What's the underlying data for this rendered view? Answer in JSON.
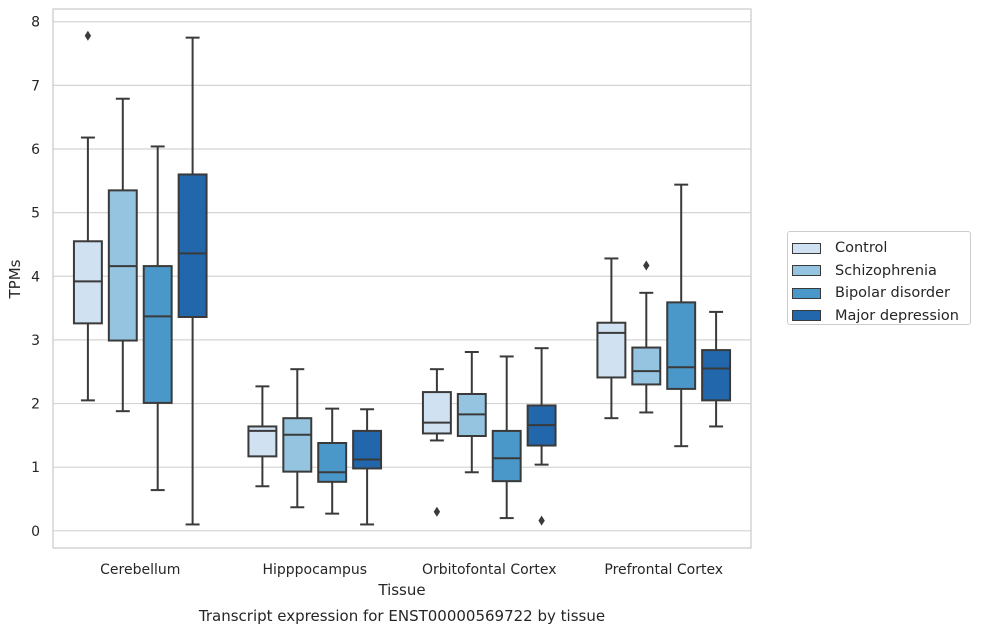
{
  "chart_data": {
    "type": "box",
    "title": "",
    "caption": "Transcript expression for ENST00000569722 by tissue",
    "xlabel": "Tissue",
    "ylabel": "TPMs",
    "ylim": [
      -0.27,
      8.2
    ],
    "yticks": [
      0,
      1,
      2,
      3,
      4,
      5,
      6,
      7,
      8
    ],
    "grid": true,
    "legend_position": "right",
    "categories": [
      "Cerebellum",
      "Hipppocampus",
      "Orbitofontal Cortex",
      "Prefrontal Cortex"
    ],
    "series": [
      {
        "name": "Control",
        "color": "#d0e1f2",
        "boxes": [
          {
            "whislo": 2.05,
            "q1": 3.26,
            "med": 3.92,
            "q3": 4.55,
            "whishi": 6.18,
            "fliers": [
              7.78
            ]
          },
          {
            "whislo": 0.7,
            "q1": 1.17,
            "med": 1.57,
            "q3": 1.64,
            "whishi": 2.27,
            "fliers": []
          },
          {
            "whislo": 1.42,
            "q1": 1.53,
            "med": 1.7,
            "q3": 2.18,
            "whishi": 2.54,
            "fliers": [
              0.3
            ]
          },
          {
            "whislo": 1.77,
            "q1": 2.41,
            "med": 3.11,
            "q3": 3.27,
            "whishi": 4.28,
            "fliers": []
          }
        ]
      },
      {
        "name": "Schizophrenia",
        "color": "#94c4df",
        "boxes": [
          {
            "whislo": 1.88,
            "q1": 2.99,
            "med": 4.16,
            "q3": 5.35,
            "whishi": 6.79,
            "fliers": []
          },
          {
            "whislo": 0.37,
            "q1": 0.93,
            "med": 1.51,
            "q3": 1.77,
            "whishi": 2.54,
            "fliers": []
          },
          {
            "whislo": 0.92,
            "q1": 1.49,
            "med": 1.83,
            "q3": 2.15,
            "whishi": 2.81,
            "fliers": []
          },
          {
            "whislo": 1.86,
            "q1": 2.3,
            "med": 2.51,
            "q3": 2.88,
            "whishi": 3.74,
            "fliers": [
              4.17
            ]
          }
        ]
      },
      {
        "name": "Bipolar disorder",
        "color": "#4a98c9",
        "boxes": [
          {
            "whislo": 0.64,
            "q1": 2.01,
            "med": 3.37,
            "q3": 4.16,
            "whishi": 6.04,
            "fliers": []
          },
          {
            "whislo": 0.27,
            "q1": 0.77,
            "med": 0.92,
            "q3": 1.38,
            "whishi": 1.92,
            "fliers": []
          },
          {
            "whislo": 0.2,
            "q1": 0.78,
            "med": 1.14,
            "q3": 1.57,
            "whishi": 2.74,
            "fliers": []
          },
          {
            "whislo": 1.33,
            "q1": 2.23,
            "med": 2.57,
            "q3": 3.59,
            "whishi": 5.44,
            "fliers": []
          }
        ]
      },
      {
        "name": "Major depression",
        "color": "#2266ac",
        "boxes": [
          {
            "whislo": 0.1,
            "q1": 3.36,
            "med": 4.36,
            "q3": 5.6,
            "whishi": 7.75,
            "fliers": []
          },
          {
            "whislo": 0.1,
            "q1": 0.98,
            "med": 1.12,
            "q3": 1.57,
            "whishi": 1.91,
            "fliers": []
          },
          {
            "whislo": 1.04,
            "q1": 1.34,
            "med": 1.66,
            "q3": 1.97,
            "whishi": 2.87,
            "fliers": [
              0.16
            ]
          },
          {
            "whislo": 1.64,
            "q1": 2.05,
            "med": 2.55,
            "q3": 2.84,
            "whishi": 3.44,
            "fliers": []
          }
        ]
      }
    ]
  }
}
